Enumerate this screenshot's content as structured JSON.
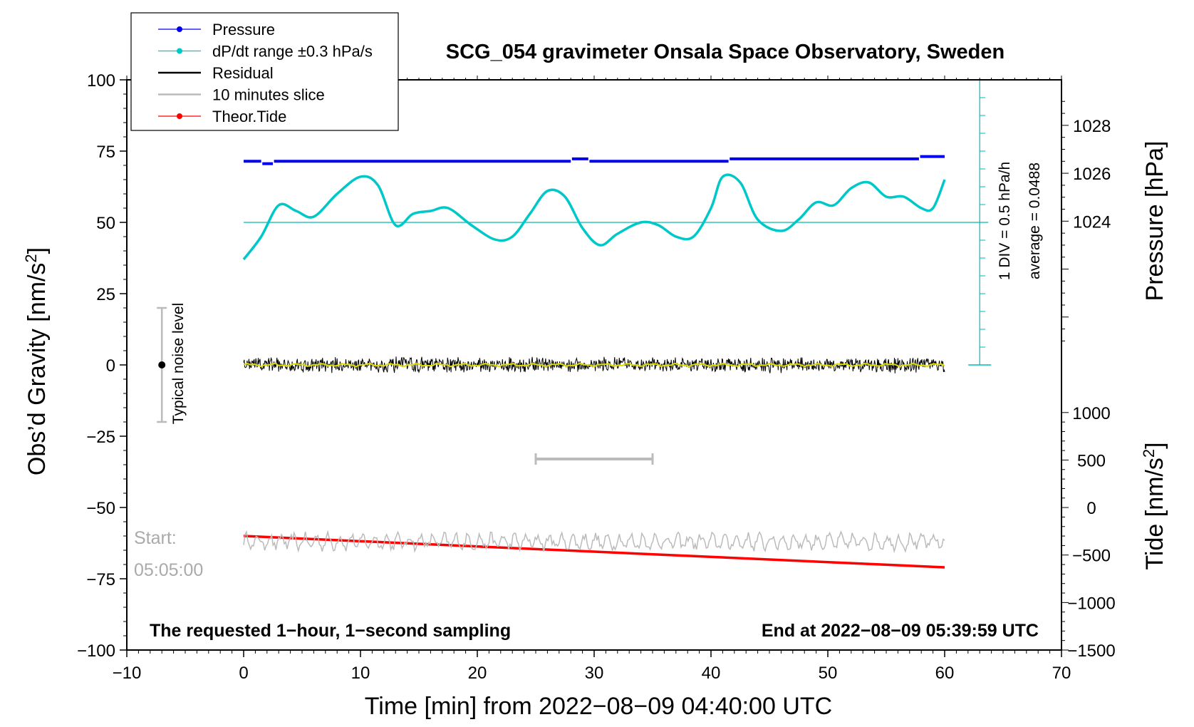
{
  "chart_data": {
    "type": "line",
    "title": "SCG_054 gravimeter Onsala Space Observatory, Sweden",
    "xlabel": "Time [min] from 2022−08−09 04:40:00 UTC",
    "ylabel_left": "Obs’d Gravity [nm/s²]",
    "ylabel_right_top": "Pressure [hPa]",
    "ylabel_right_bottom": "Tide [nm/s²]",
    "xlim": [
      -10,
      70
    ],
    "ylim": [
      -100,
      100
    ],
    "x_ticks": [
      -10,
      0,
      10,
      20,
      30,
      40,
      50,
      60,
      70
    ],
    "x_tick_labels": [
      "−10",
      "0",
      "10",
      "20",
      "30",
      "40",
      "50",
      "60",
      "70"
    ],
    "y_ticks": [
      -100,
      -75,
      -50,
      -25,
      0,
      25,
      50,
      75,
      100
    ],
    "y_tick_labels": [
      "−100",
      "−75",
      "−50",
      "−25",
      "0",
      "25",
      "50",
      "75",
      "100"
    ],
    "pressure_axis": {
      "ticks": [
        1024,
        1026,
        1028
      ],
      "tick_labels": [
        "1024",
        "1026",
        "1028"
      ],
      "range_hpa": [
        1018,
        1029.9
      ],
      "gravity_equivalent": [
        0,
        100
      ]
    },
    "tide_axis": {
      "ticks": [
        -1500,
        -1000,
        -500,
        0,
        500,
        1000
      ],
      "tick_labels": [
        "−1500",
        "−1000",
        "−500",
        "0",
        "500",
        "1000"
      ],
      "range": [
        -1500,
        1000
      ],
      "gravity_equivalent": [
        -100,
        -16.7
      ]
    },
    "dpdt_scale": {
      "label_div": "1 DIV = 0.5 hPa/h",
      "label_avg": "average = 0.0488",
      "x": 63,
      "center": 50,
      "bottom": 0,
      "top": 100
    },
    "legend": [
      {
        "label": "Pressure",
        "color": "#0000ee",
        "marker": "dot"
      },
      {
        "label": "dP/dt range ±0.3 hPa/s",
        "color": "#00c8c8",
        "marker": "dot"
      },
      {
        "label": "Residual",
        "color": "#000000",
        "marker": "line"
      },
      {
        "label": "10 minutes slice",
        "color": "#bbbbbb",
        "marker": "line"
      },
      {
        "label": "Theor.Tide",
        "color": "#ff0000",
        "marker": "dot"
      }
    ],
    "series": [
      {
        "name": "Pressure",
        "units": "hPa",
        "color": "#0000ee",
        "x": [
          0,
          1.5,
          1.6,
          2.5,
          2.6,
          28,
          28.1,
          29.5,
          29.6,
          41.5,
          41.6,
          57.8,
          57.9,
          60
        ],
        "y": [
          1026.5,
          1026.5,
          1026.4,
          1026.4,
          1026.5,
          1026.5,
          1026.6,
          1026.6,
          1026.5,
          1026.5,
          1026.6,
          1026.6,
          1026.7,
          1026.7
        ]
      },
      {
        "name": "dP/dt",
        "units": "nm/s² plot scale",
        "color": "#00c8c8",
        "x": [
          0,
          1.5,
          3,
          4.5,
          6,
          8,
          10,
          11.5,
          13,
          14.5,
          16,
          17.5,
          19.5,
          21.5,
          23,
          24.5,
          26,
          27.5,
          29,
          30.5,
          32,
          34,
          35.5,
          37,
          38.5,
          40,
          41,
          42.5,
          44,
          46,
          47.5,
          49,
          50.5,
          52,
          53.5,
          55,
          56.5,
          58,
          59,
          60
        ],
        "y": [
          37,
          45,
          56,
          54,
          52,
          60,
          66,
          63,
          49,
          53,
          54,
          55,
          49,
          44,
          45,
          53,
          61,
          59,
          48,
          42,
          46,
          50,
          49,
          45,
          45,
          55,
          66,
          64,
          51,
          47,
          51,
          57,
          56,
          62,
          64,
          59,
          59,
          55,
          55,
          65
        ]
      },
      {
        "name": "Residual",
        "units": "nm/s²",
        "color": "#000000",
        "x": [
          0,
          60
        ],
        "y": [
          0,
          0
        ],
        "noise_amplitude": 2.5
      },
      {
        "name": "Residual smoothed",
        "units": "nm/s²",
        "color": "#dddd00",
        "x": [
          0,
          60
        ],
        "y": [
          0,
          0
        ]
      },
      {
        "name": "10 minutes slice",
        "units": "nm/s²",
        "color": "#bbbbbb",
        "x": [
          0,
          60
        ],
        "y": [
          -62,
          -62
        ],
        "noise_amplitude": 3
      },
      {
        "name": "Theor.Tide",
        "units": "nm/s²",
        "color": "#ff0000",
        "x": [
          0,
          60
        ],
        "y": [
          -60,
          -71
        ]
      }
    ],
    "noise_bar": {
      "label": "Typical noise level",
      "x": -7,
      "center": 0,
      "low": -20,
      "high": 20
    },
    "slice_bar": {
      "x_start": 25,
      "x_end": 35,
      "y": -33
    }
  },
  "annotations": {
    "start_line1": "Start:",
    "start_line2": "05:05:00",
    "bottom_left": "The requested 1−hour, 1−second sampling",
    "bottom_right": "End at 2022−08−09 05:39:59 UTC"
  }
}
